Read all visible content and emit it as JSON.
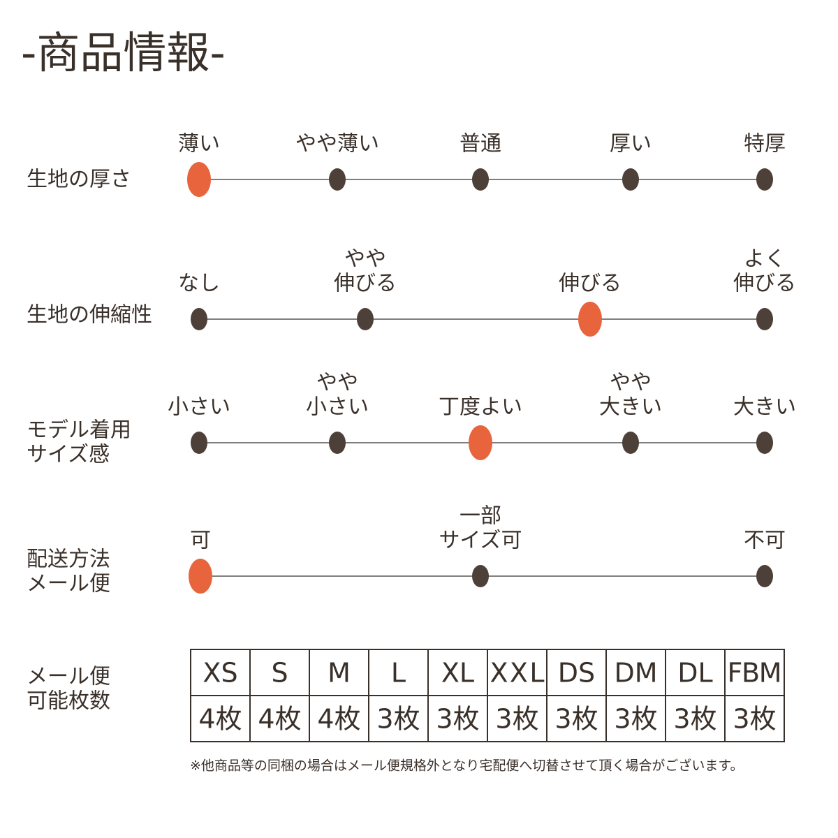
{
  "title": "-商品情報-",
  "rows": [
    {
      "label": [
        "生地の厚さ"
      ],
      "options": [
        [
          "薄い"
        ],
        [
          "やや薄い"
        ],
        [
          "普通"
        ],
        [
          "厚い"
        ],
        [
          "特厚"
        ]
      ],
      "selected": 0
    },
    {
      "label": [
        "生地の伸縮性"
      ],
      "options": [
        [
          "なし"
        ],
        [
          "やや",
          "伸びる"
        ],
        [
          "伸びる"
        ],
        [
          "よく",
          "伸びる"
        ]
      ],
      "selected": 2
    },
    {
      "label": [
        "モデル着用",
        "サイズ感"
      ],
      "options": [
        [
          "小さい"
        ],
        [
          "やや",
          "小さい"
        ],
        [
          "丁度よい"
        ],
        [
          "やや",
          "大きい"
        ],
        [
          "大きい"
        ]
      ],
      "selected": 2
    },
    {
      "label": [
        "配送方法",
        "メール便"
      ],
      "options": [
        [
          "可"
        ],
        [
          "一部",
          "サイズ可"
        ],
        [
          "不可"
        ]
      ],
      "selected": 0
    }
  ],
  "table": {
    "label": [
      "メール便",
      "可能枚数"
    ],
    "header": [
      "XS",
      "S",
      "M",
      "L",
      "XL",
      "XXL",
      "DS",
      "DM",
      "DL",
      "FBM"
    ],
    "values": [
      "4枚",
      "4枚",
      "4枚",
      "3枚",
      "3枚",
      "3枚",
      "3枚",
      "3枚",
      "3枚",
      "3枚"
    ]
  },
  "note": "※他商品等の同梱の場合はメール便規格外となり宅配便へ切替させて頂く場合がございます。"
}
